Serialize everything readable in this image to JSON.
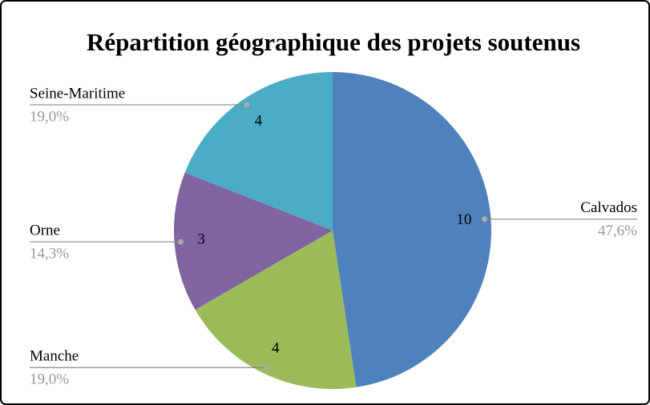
{
  "chart_data": {
    "type": "pie",
    "title": "Répartition géographique des projets soutenus",
    "categories": [
      "Calvados",
      "Manche",
      "Orne",
      "Seine-Maritime"
    ],
    "values": [
      10,
      4,
      3,
      4
    ],
    "percent_labels": [
      "47,6%",
      "19,0%",
      "14,3%",
      "19,0%"
    ],
    "colors": [
      "#4f81bd",
      "#9bbb59",
      "#8064a2",
      "#4bacc6"
    ]
  }
}
